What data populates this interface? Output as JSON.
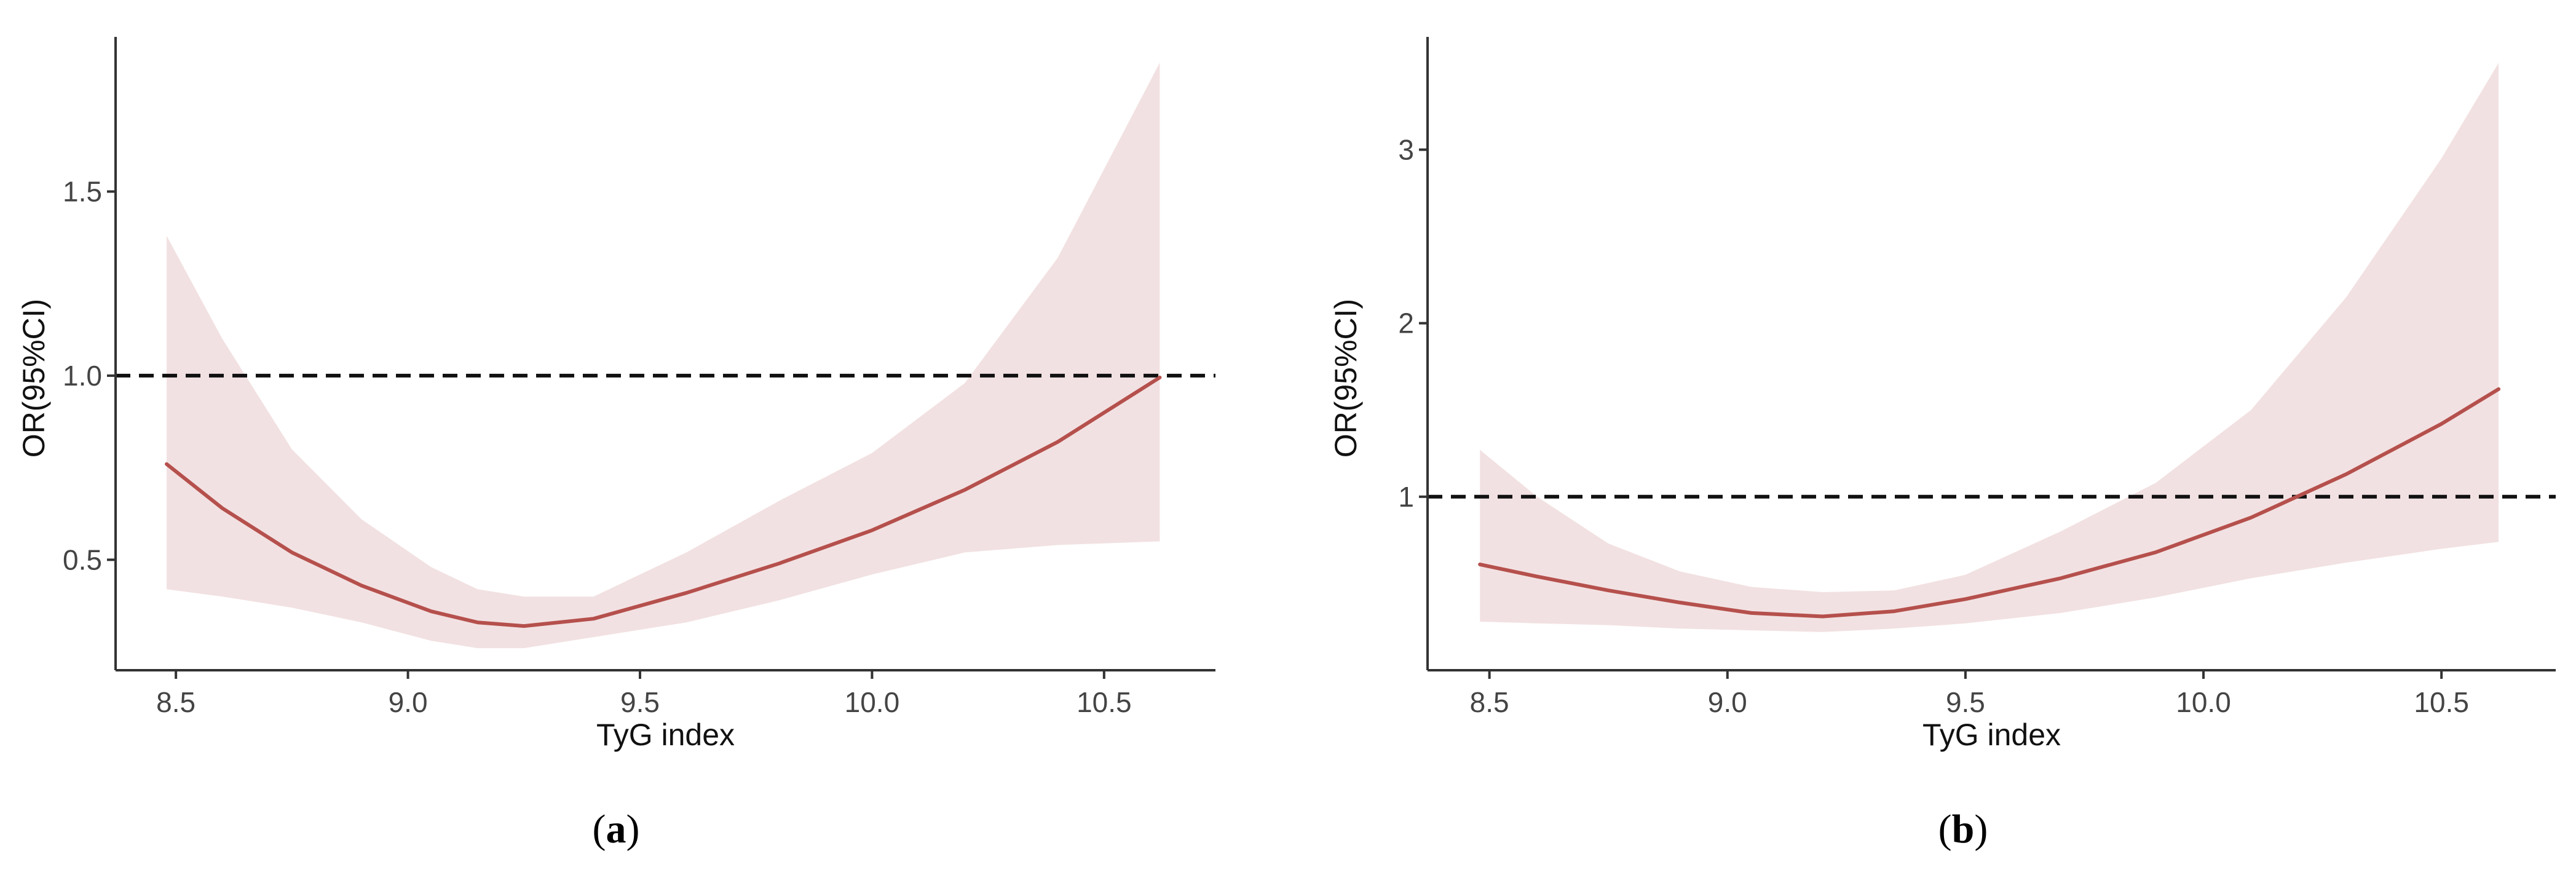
{
  "colors": {
    "curve": "#B5504C",
    "band": "#F2E1E2",
    "reference_line": "#111111",
    "axis": "#333333"
  },
  "chart_data": [
    {
      "type": "line",
      "panel_label": "a",
      "xlabel": "TyG index",
      "ylabel": "OR(95%CI)",
      "xlim": [
        8.37,
        10.74
      ],
      "ylim": [
        0.2,
        1.92
      ],
      "x_ticks": [
        8.5,
        9.0,
        9.5,
        10.0,
        10.5
      ],
      "x_tick_labels": [
        "8.5",
        "9.0",
        "9.5",
        "10.0",
        "10.5"
      ],
      "y_ticks": [
        0.5,
        1.0,
        1.5
      ],
      "y_tick_labels": [
        "0.5",
        "1.0",
        "1.5"
      ],
      "reference_line": {
        "y": 1.0,
        "style": "dashed"
      },
      "grid": false,
      "series": [
        {
          "kind": "line",
          "x": [
            8.48,
            8.6,
            8.75,
            8.9,
            9.05,
            9.15,
            9.25,
            9.4,
            9.6,
            9.8,
            10.0,
            10.2,
            10.4,
            10.62
          ],
          "values": [
            0.76,
            0.64,
            0.52,
            0.43,
            0.36,
            0.33,
            0.32,
            0.34,
            0.41,
            0.49,
            0.58,
            0.69,
            0.82,
            0.995
          ]
        },
        {
          "kind": "band",
          "x": [
            8.48,
            8.6,
            8.75,
            8.9,
            9.05,
            9.15,
            9.25,
            9.4,
            9.6,
            9.8,
            10.0,
            10.2,
            10.4,
            10.62
          ],
          "lower": [
            0.42,
            0.4,
            0.37,
            0.33,
            0.28,
            0.26,
            0.26,
            0.29,
            0.33,
            0.39,
            0.46,
            0.52,
            0.54,
            0.55
          ],
          "upper": [
            1.38,
            1.1,
            0.8,
            0.61,
            0.48,
            0.42,
            0.4,
            0.4,
            0.52,
            0.66,
            0.79,
            0.98,
            1.32,
            1.85
          ]
        }
      ]
    },
    {
      "type": "line",
      "panel_label": "b",
      "xlabel": "TyG index",
      "ylabel": "OR(95%CI)",
      "xlim": [
        8.37,
        10.74
      ],
      "ylim": [
        0.0,
        3.65
      ],
      "x_ticks": [
        8.5,
        9.0,
        9.5,
        10.0,
        10.5
      ],
      "x_tick_labels": [
        "8.5",
        "9.0",
        "9.5",
        "10.0",
        "10.5"
      ],
      "y_ticks": [
        1,
        2,
        3
      ],
      "y_tick_labels": [
        "1",
        "2",
        "3"
      ],
      "reference_line": {
        "y": 1.0,
        "style": "dashed"
      },
      "grid": false,
      "series": [
        {
          "kind": "line",
          "x": [
            8.48,
            8.6,
            8.75,
            8.9,
            9.05,
            9.2,
            9.35,
            9.5,
            9.7,
            9.9,
            10.1,
            10.3,
            10.5,
            10.62
          ],
          "values": [
            0.61,
            0.54,
            0.46,
            0.39,
            0.33,
            0.31,
            0.34,
            0.41,
            0.53,
            0.68,
            0.88,
            1.13,
            1.42,
            1.62
          ]
        },
        {
          "kind": "band",
          "x": [
            8.48,
            8.6,
            8.75,
            8.9,
            9.05,
            9.2,
            9.35,
            9.5,
            9.7,
            9.9,
            10.1,
            10.3,
            10.5,
            10.62
          ],
          "lower": [
            0.28,
            0.27,
            0.26,
            0.24,
            0.23,
            0.22,
            0.24,
            0.27,
            0.33,
            0.42,
            0.53,
            0.62,
            0.7,
            0.74
          ],
          "upper": [
            1.27,
            1.0,
            0.73,
            0.57,
            0.48,
            0.45,
            0.46,
            0.55,
            0.8,
            1.08,
            1.5,
            2.15,
            2.95,
            3.5
          ]
        }
      ]
    }
  ]
}
